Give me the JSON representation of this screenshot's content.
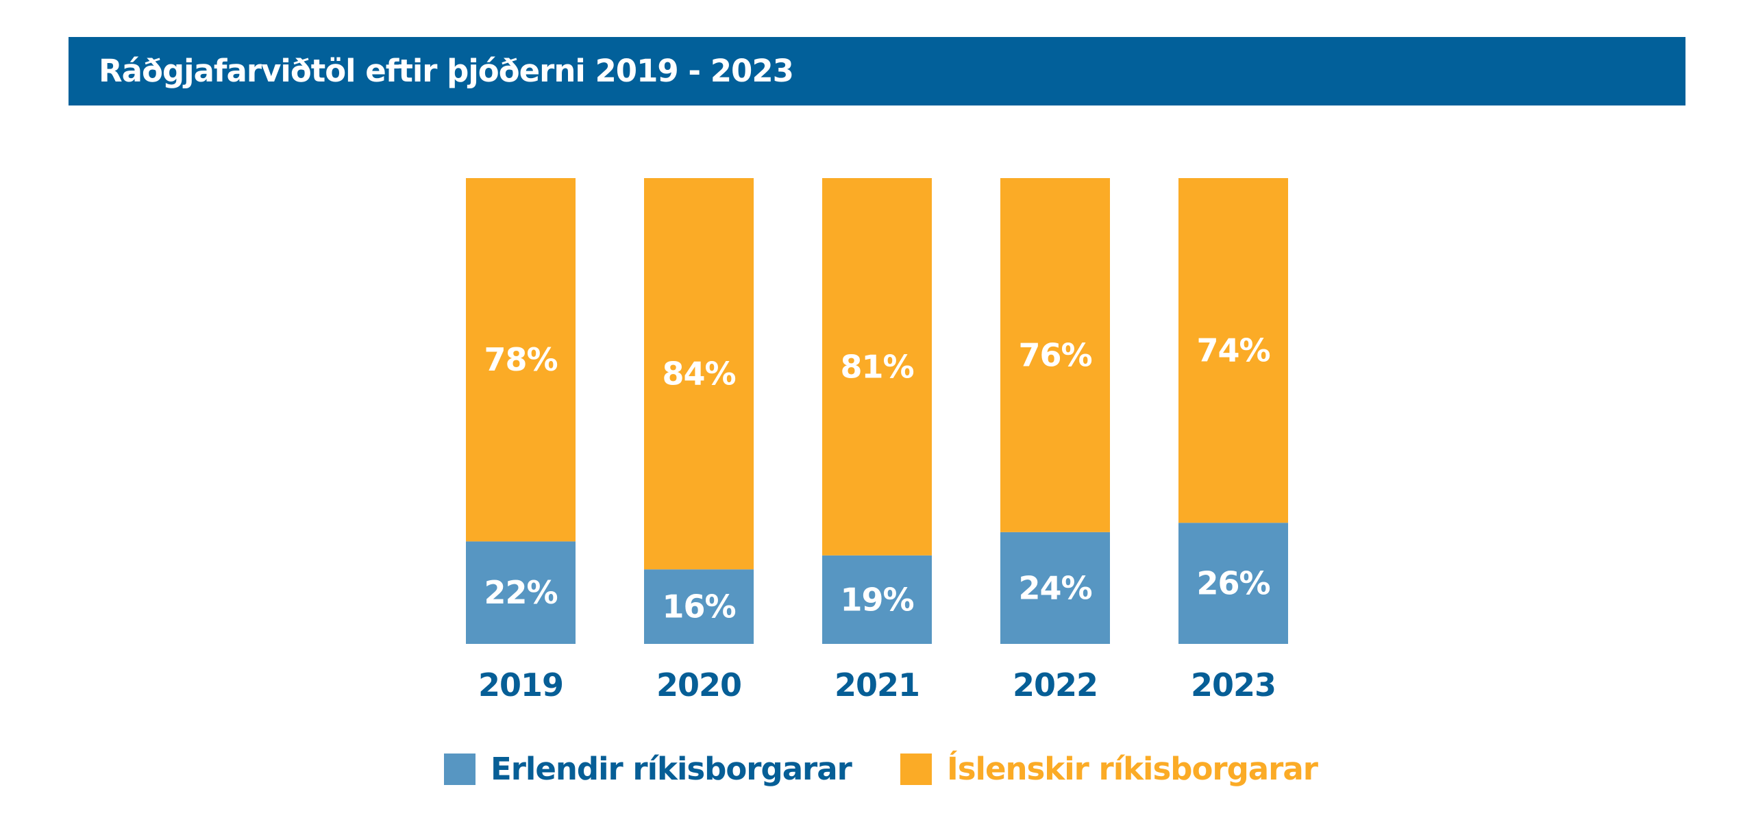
{
  "colors": {
    "banner": "#02609a",
    "foreign": "#5796c2",
    "icelandic": "#fbab26",
    "year_label": "#065e96",
    "segment_label": "#ffffff"
  },
  "chart_data": {
    "type": "bar",
    "stacked": true,
    "title": "Ráðgjafarviðtöl eftir þjóðerni 2019 - 2023",
    "xlabel": "",
    "ylabel": "",
    "ylim": [
      0,
      100
    ],
    "grid": false,
    "legend_position": "bottom",
    "categories": [
      "2019",
      "2020",
      "2021",
      "2022",
      "2023"
    ],
    "series": [
      {
        "name": "Erlendir ríkisborgarar",
        "color": "#5796c2",
        "values": [
          22,
          16,
          19,
          24,
          26
        ],
        "labels": [
          "22%",
          "16%",
          "19%",
          "24%",
          "26%"
        ]
      },
      {
        "name": "Íslenskir ríkisborgarar",
        "color": "#fbab26",
        "values": [
          78,
          84,
          81,
          76,
          74
        ],
        "labels": [
          "78%",
          "84%",
          "81%",
          "76%",
          "74%"
        ]
      }
    ]
  }
}
